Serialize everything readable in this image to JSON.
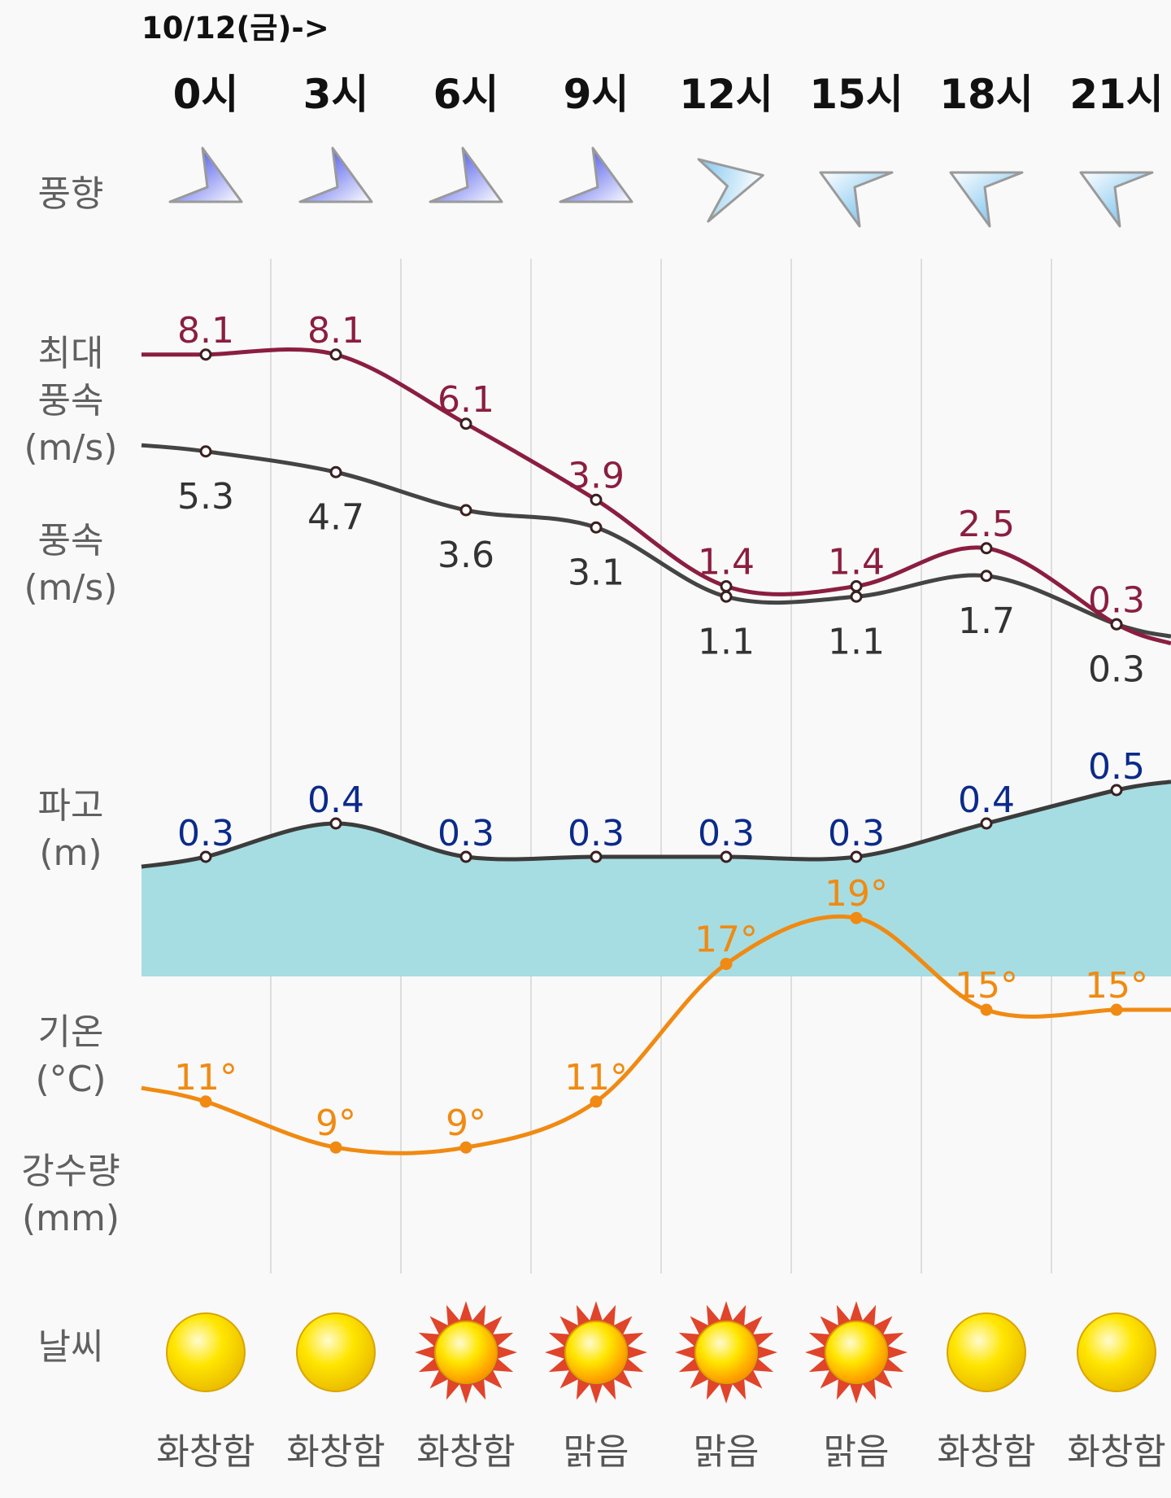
{
  "header": {
    "date_label": "10/12(금)->"
  },
  "hours": [
    "0시",
    "3시",
    "6시",
    "9시",
    "12시",
    "15시",
    "18시",
    "21시"
  ],
  "row_labels": {
    "wind_direction": "풍향",
    "max_wind": "최대\n풍속\n(m/s)",
    "wind": "풍속\n(m/s)",
    "wave": "파고\n(m)",
    "temp": "기온\n(°C)",
    "rain": "강수량\n(mm)",
    "weather": "날씨"
  },
  "wind_direction": {
    "icons": [
      "arrow-up-right-icon",
      "arrow-up-right-icon",
      "arrow-up-right-icon",
      "arrow-up-right-icon",
      "arrow-up-icon",
      "arrow-left-icon",
      "arrow-left-icon",
      "arrow-left-icon"
    ],
    "colors": [
      "#2633e6",
      "#2633e6",
      "#2633e6",
      "#2633e6",
      "#5bb4ea",
      "#5bb4ea",
      "#5bb4ea",
      "#5bb4ea"
    ]
  },
  "weather": {
    "conditions": [
      "화창함",
      "화창함",
      "화창함",
      "맑음",
      "맑음",
      "맑음",
      "화창함",
      "화창함"
    ],
    "icons": [
      "sun-icon",
      "sun-icon",
      "bright-sun-icon",
      "bright-sun-icon",
      "bright-sun-icon",
      "bright-sun-icon",
      "sun-icon",
      "sun-icon"
    ]
  },
  "chart_data": {
    "type": "line",
    "categories": [
      "0시",
      "3시",
      "6시",
      "9시",
      "12시",
      "15시",
      "18시",
      "21시"
    ],
    "series": [
      {
        "name": "최대 풍속 (m/s)",
        "values": [
          8.1,
          8.1,
          6.1,
          3.9,
          1.4,
          1.4,
          2.5,
          0.3
        ],
        "labels": [
          "8.1",
          "8.1",
          "6.1",
          "3.9",
          "1.4",
          "1.4",
          "2.5",
          "0.3"
        ],
        "color": "#8b1e40"
      },
      {
        "name": "풍속 (m/s)",
        "values": [
          5.3,
          4.7,
          3.6,
          3.1,
          1.1,
          1.1,
          1.7,
          0.3
        ],
        "labels": [
          "5.3",
          "4.7",
          "3.6",
          "3.1",
          "1.1",
          "1.1",
          "1.7",
          "0.3"
        ],
        "color": "#444444"
      },
      {
        "name": "파고 (m)",
        "values": [
          0.3,
          0.4,
          0.3,
          0.3,
          0.3,
          0.3,
          0.4,
          0.5
        ],
        "labels": [
          "0.3",
          "0.4",
          "0.3",
          "0.3",
          "0.3",
          "0.3",
          "0.4",
          "0.5"
        ],
        "color": "#0b2a8a",
        "fill": "#a6dde2"
      },
      {
        "name": "기온 (°C)",
        "values": [
          11,
          9,
          9,
          11,
          17,
          19,
          15,
          15
        ],
        "labels": [
          "11°",
          "9°",
          "9°",
          "11°",
          "17°",
          "19°",
          "15°",
          "15°"
        ],
        "color": "#f08a12"
      }
    ]
  }
}
